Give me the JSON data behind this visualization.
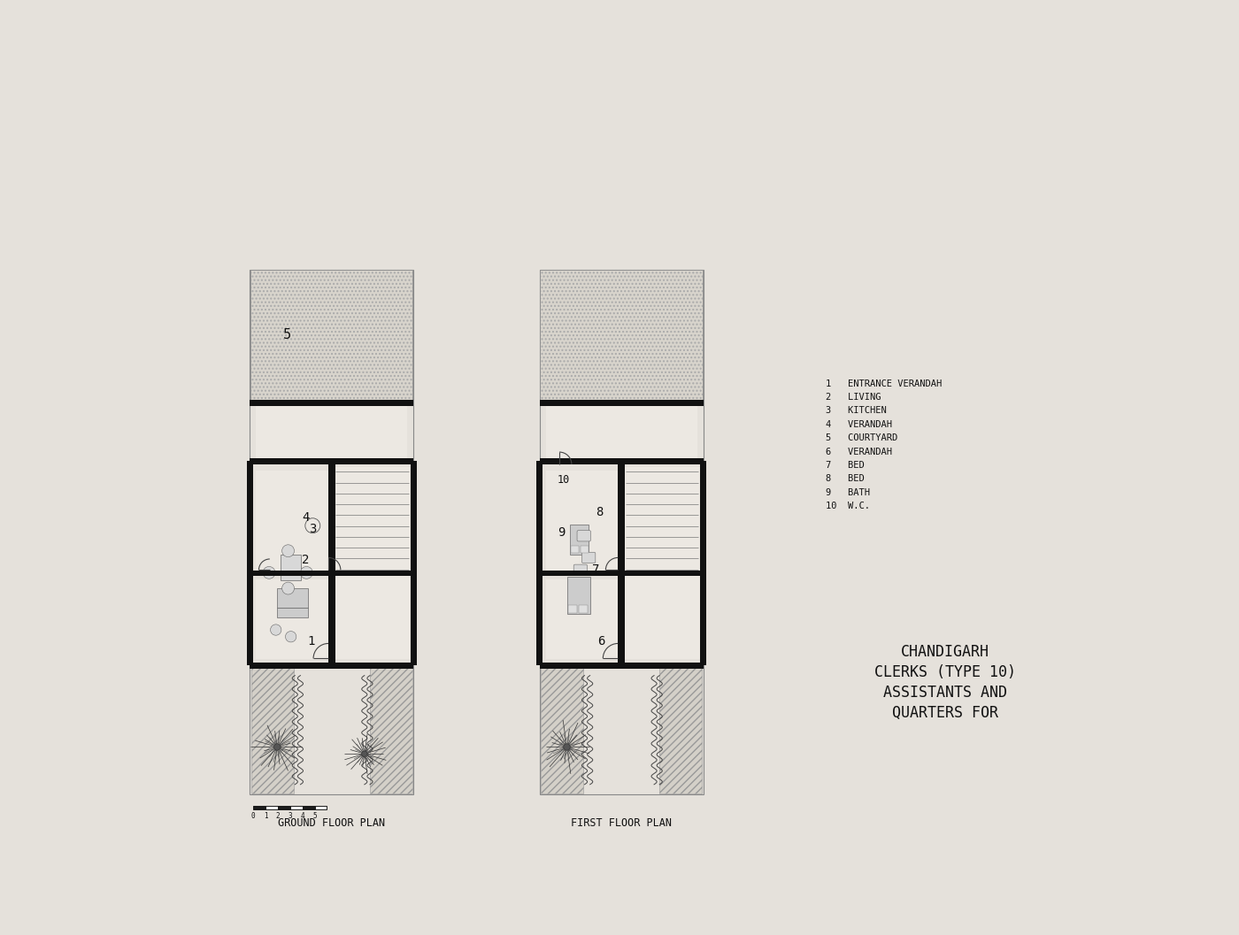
{
  "bg_color": "#e5e1db",
  "title_lines": [
    "QUARTERS FOR",
    "ASSISTANTS AND",
    "CLERKS (TYPE 10)",
    "CHANDIGARH"
  ],
  "label1": "GROUND FLOOR PLAN",
  "label2": "FIRST FLOOR PLAN",
  "legend": [
    "1   ENTRANCE VERANDAH",
    "2   LIVING",
    "3   KITCHEN",
    "4   VERANDAH",
    "5   COURTYARD",
    "6   VERANDAH",
    "7   BED",
    "8   BED",
    "9   BATH",
    "10  W.C."
  ],
  "wall_color": "#111111",
  "text_color": "#111111",
  "room_fill": "#ece8e2",
  "hatch_fill": "#d4d0c8",
  "court_fill": "#d8d4cc"
}
